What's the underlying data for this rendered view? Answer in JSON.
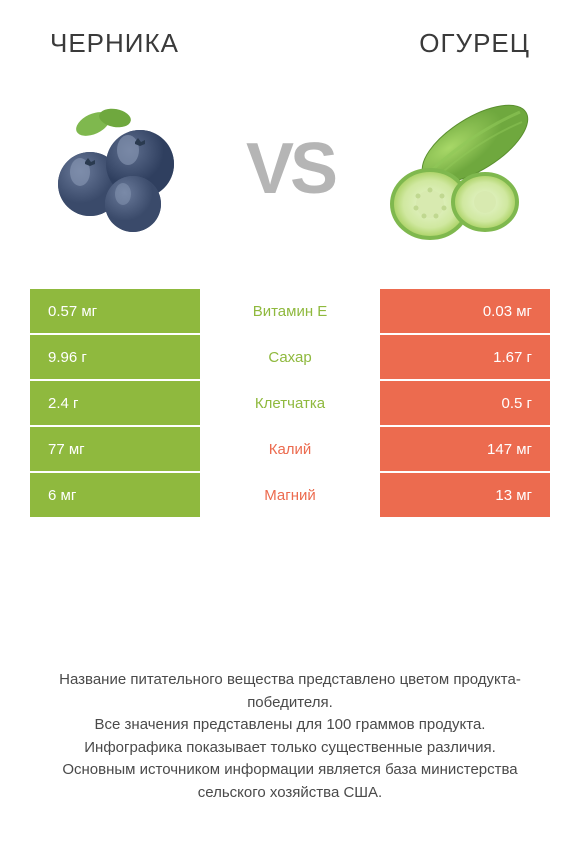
{
  "colors": {
    "left": "#8fb93e",
    "right": "#ec6b4f",
    "text_dark": "#3a3a3a",
    "text_footer": "#4a4a4a",
    "vs": "#b5b5b5",
    "white": "#ffffff"
  },
  "header": {
    "left_title": "ЧЕРНИКА",
    "right_title": "ОГУРЕЦ"
  },
  "vs_label": "VS",
  "rows": [
    {
      "label": "Витамин E",
      "left": "0.57 мг",
      "right": "0.03 мг",
      "winner": "left"
    },
    {
      "label": "Сахар",
      "left": "9.96 г",
      "right": "1.67 г",
      "winner": "left"
    },
    {
      "label": "Клетчатка",
      "left": "2.4 г",
      "right": "0.5 г",
      "winner": "left"
    },
    {
      "label": "Калий",
      "left": "77 мг",
      "right": "147 мг",
      "winner": "right"
    },
    {
      "label": "Магний",
      "left": "6 мг",
      "right": "13 мг",
      "winner": "right"
    }
  ],
  "footer_lines": [
    "Название питательного вещества представлено цветом продукта-победителя.",
    "Все значения представлены для 100 граммов продукта.",
    "Инфографика показывает только существенные различия.",
    "Основным источником информации является база министерства сельского хозяйства США."
  ]
}
